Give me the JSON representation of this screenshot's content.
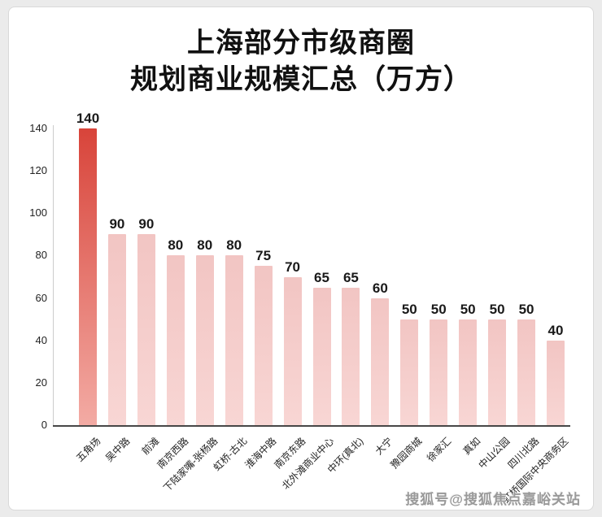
{
  "page": {
    "background": "#ebebeb",
    "card_background": "#ffffff",
    "card_border": "#d9d9d9"
  },
  "title": {
    "line1": "上海部分市级商圈",
    "line2": "规划商业规模汇总（万方）"
  },
  "watermark": {
    "text": "搜狐号@搜狐焦点嘉峪关站"
  },
  "chart_data": {
    "type": "bar",
    "title": "上海部分市级商圈规划商业规模汇总（万方）",
    "categories": [
      "五角场",
      "吴中路",
      "前滩",
      "南京西路",
      "下陆家嘴-张杨路",
      "虹桥-古北",
      "淮海中路",
      "南京东路",
      "北外滩商业中心",
      "中环(真北)",
      "大宁",
      "豫园商城",
      "徐家汇",
      "真如",
      "中山公园",
      "四川北路",
      "虹桥国际中央商务区"
    ],
    "values": [
      140,
      90,
      90,
      80,
      80,
      80,
      75,
      70,
      65,
      65,
      60,
      50,
      50,
      50,
      50,
      50,
      40
    ],
    "xlabel": "",
    "ylabel": "",
    "ylim": [
      0,
      140
    ],
    "yticks": [
      0,
      20,
      40,
      60,
      80,
      100,
      120,
      140
    ],
    "grid": false,
    "legend": null,
    "data_labels": true,
    "highlight_index": 0,
    "colors": {
      "highlight_bar_top": "#d8443a",
      "highlight_bar_bottom": "#f3aba4",
      "bar_top": "#f2c5c3",
      "bar_bottom": "#f8d6d4",
      "x_axis_line": "#474747",
      "y_axis_line": "#cccccc",
      "value_label_text": "#1a1a1a",
      "tick_text": "#222222",
      "category_text": "#222222",
      "title_text": "#111111",
      "watermark_text": "#999999"
    }
  }
}
